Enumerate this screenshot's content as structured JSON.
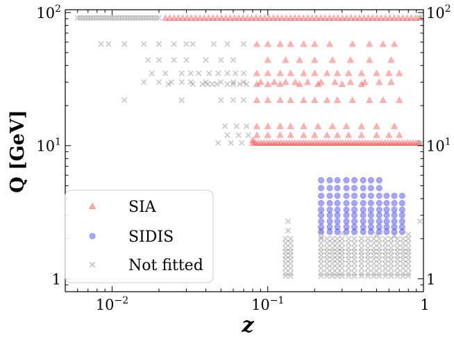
{
  "chart_data": {
    "type": "scatter",
    "xlabel": "z",
    "ylabel": "Q [GeV]",
    "xscale": "log",
    "yscale": "log",
    "xlim": [
      0.005,
      1.0
    ],
    "ylim": [
      0.8,
      105
    ],
    "x_ticks": [
      {
        "value": 0.01,
        "base": "10",
        "exp": "−2"
      },
      {
        "value": 0.1,
        "base": "10",
        "exp": "−1"
      },
      {
        "value": 1,
        "base": "1",
        "exp": ""
      }
    ],
    "y_ticks": [
      {
        "value": 1,
        "base": "1",
        "exp": ""
      },
      {
        "value": 10,
        "base": "10",
        "exp": "1"
      },
      {
        "value": 100,
        "base": "10",
        "exp": "2"
      }
    ],
    "legend": {
      "placement": "lower-left",
      "entries": [
        {
          "label": "SIA",
          "marker": "triangle",
          "color": "#ff0000"
        },
        {
          "label": "SIDIS",
          "marker": "circle",
          "color": "#0000ff"
        },
        {
          "label": "Not fitted",
          "marker": "x",
          "color": "#808080"
        }
      ]
    },
    "series": [
      {
        "name": "SIA",
        "marker": "triangle",
        "color": "#ff0000",
        "opacity": 0.3,
        "groups": [
          {
            "Q": 91.2,
            "x_from": 0.022,
            "x_to": 0.95,
            "n": 60
          },
          {
            "Q": 10.5,
            "x_from": 0.08,
            "x_to": 0.93,
            "n": 60
          },
          {
            "Q": 58,
            "x": [
              0.085,
              0.1,
              0.12,
              0.14,
              0.17,
              0.2,
              0.25,
              0.35,
              0.45,
              0.55,
              0.65
            ]
          },
          {
            "Q": 44,
            "x": [
              0.1,
              0.13,
              0.16,
              0.2,
              0.26,
              0.34,
              0.45,
              0.62
            ]
          },
          {
            "Q": 35,
            "x": [
              0.085,
              0.1,
              0.12,
              0.14,
              0.17,
              0.2,
              0.24,
              0.28,
              0.33,
              0.4,
              0.5,
              0.6,
              0.7
            ]
          },
          {
            "Q": 30,
            "x": [
              0.09,
              0.11,
              0.13,
              0.15,
              0.18,
              0.22,
              0.27,
              0.34,
              0.42,
              0.52,
              0.62
            ]
          },
          {
            "Q": 29,
            "x": [
              0.085,
              0.1,
              0.12,
              0.16,
              0.21,
              0.3,
              0.4
            ]
          },
          {
            "Q": 22,
            "x": [
              0.085,
              0.1,
              0.12,
              0.14,
              0.17,
              0.2,
              0.24,
              0.28,
              0.35,
              0.45,
              0.55,
              0.7
            ]
          },
          {
            "Q": 14,
            "x": [
              0.085,
              0.1,
              0.12,
              0.14,
              0.17,
              0.21,
              0.26,
              0.32,
              0.4,
              0.5,
              0.65
            ]
          },
          {
            "Q": 12,
            "x": [
              0.085,
              0.1,
              0.12,
              0.14,
              0.17,
              0.2,
              0.24,
              0.28,
              0.33,
              0.4,
              0.5,
              0.6,
              0.7
            ]
          },
          {
            "Q": 11,
            "x": [
              0.08
            ]
          }
        ]
      },
      {
        "name": "SIDIS",
        "marker": "circle",
        "color": "#0000ff",
        "opacity": 0.35,
        "grid": {
          "x": [
            0.22,
            0.25,
            0.28,
            0.32,
            0.36,
            0.41,
            0.46,
            0.52,
            0.58,
            0.65,
            0.73
          ],
          "Q": [
            5.5,
            4.8,
            4.2,
            3.7,
            3.3,
            3.0,
            2.7,
            2.45,
            2.25
          ],
          "x_min": 0.2
        }
      },
      {
        "name": "Not fitted",
        "marker": "x",
        "color": "#808080",
        "opacity": 0.4,
        "groups": [
          {
            "Q": 91.2,
            "x_from": 0.006,
            "x_to": 0.02,
            "n": 32
          },
          {
            "Q": 91.2,
            "x": [
              0.95
            ]
          },
          {
            "Q": 10.5,
            "x": [
              0.94,
              0.97
            ]
          },
          {
            "Q": 58,
            "x": [
              0.0085,
              0.0095,
              0.012,
              0.016,
              0.02,
              0.025,
              0.03,
              0.033,
              0.045,
              0.055,
              0.07
            ]
          },
          {
            "Q": 44,
            "x": [
              0.017,
              0.02,
              0.025,
              0.03,
              0.04,
              0.05,
              0.06
            ]
          },
          {
            "Q": 35,
            "x": [
              0.018,
              0.022,
              0.028,
              0.032,
              0.036,
              0.042,
              0.048,
              0.055,
              0.062,
              0.07
            ]
          },
          {
            "Q": 30,
            "x": [
              0.016,
              0.02,
              0.024,
              0.028,
              0.032,
              0.04,
              0.05,
              0.06,
              0.07
            ]
          },
          {
            "Q": 29,
            "x": [
              0.023,
              0.033,
              0.038,
              0.041,
              0.044,
              0.047,
              0.055,
              0.06,
              0.066,
              0.073
            ]
          },
          {
            "Q": 22,
            "x": [
              0.012,
              0.028,
              0.05,
              0.06,
              0.07
            ]
          },
          {
            "Q": 14,
            "x": [
              0.053,
              0.063,
              0.073
            ]
          },
          {
            "Q": 12,
            "x": [
              0.055,
              0.065,
              0.075
            ]
          },
          {
            "Q": 10.5,
            "x": [
              0.048,
              0.058,
              0.068
            ]
          },
          {
            "Q": 2.7,
            "x": [
              0.95
            ]
          }
        ],
        "low_grid": {
          "x": [
            0.13,
            0.14,
            0.22,
            0.24,
            0.26,
            0.28,
            0.3,
            0.33,
            0.36,
            0.4,
            0.44,
            0.48,
            0.52,
            0.57,
            0.62,
            0.68,
            0.74,
            0.8
          ],
          "Q": [
            2.0,
            1.85,
            1.7,
            1.6,
            1.5,
            1.4,
            1.3,
            1.2,
            1.1,
            1.05
          ]
        },
        "extra_points": [
          {
            "x": 0.135,
            "Q": 2.7
          },
          {
            "x": 0.135,
            "Q": 2.3
          },
          {
            "x": 0.22,
            "Q": 2.3
          },
          {
            "x": 0.22,
            "Q": 2.05
          },
          {
            "x": 0.3,
            "Q": 2.2
          },
          {
            "x": 0.5,
            "Q": 2.15
          },
          {
            "x": 0.65,
            "Q": 2.1
          },
          {
            "x": 0.8,
            "Q": 2.15
          }
        ]
      }
    ]
  }
}
